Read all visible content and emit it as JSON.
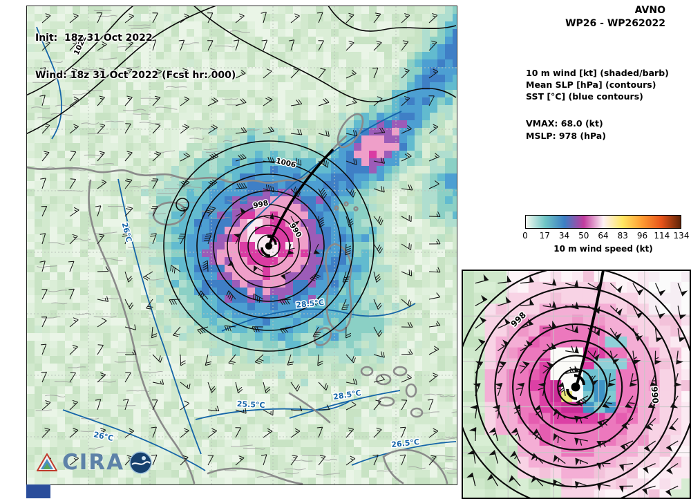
{
  "header": {
    "model": "AVNO",
    "storm": "WP26 - WP262022"
  },
  "titles": {
    "init": "Init:  18z 31 Oct 2022",
    "valid": "Wind: 18z 31 Oct 2022 (Fcst hr: 000)"
  },
  "legend": {
    "line1": "10 m wind [kt] (shaded/barb)",
    "line2": "Mean SLP [hPa] (contours)",
    "line3": "SST [°C] (blue contours)",
    "vmax": "VMAX:  68.0 (kt)",
    "mslp": "MSLP:  978 (hPa)"
  },
  "colorbar": {
    "ticks": [
      "0",
      "17",
      "34",
      "50",
      "64",
      "83",
      "96",
      "114",
      "134"
    ],
    "label": "10 m wind speed (kt)",
    "colors": [
      "#f4faf1",
      "#6fc5c5",
      "#3c7fc4",
      "#c23c9e",
      "#fdf0f5",
      "#ffe763",
      "#ff9d33",
      "#e8541a",
      "#5f2408"
    ]
  },
  "map_labels": {
    "slp_1022": "1022",
    "slp_1006": "1006",
    "slp_998": "998",
    "slp_990": "990",
    "sst_coast": "26°C",
    "sst_mid": "28.5°C",
    "sst_low": "25.5°C",
    "sst_south": "28.5°C",
    "sst_sw": "26°C",
    "sst_se": "26.5°C"
  },
  "inset_labels": {
    "slp_998": "998",
    "slp_990": "990"
  },
  "logo": {
    "text": "CIRA"
  },
  "chart_data": {
    "type": "heatmap",
    "title": "AVNO WP26 - WP262022 — 10 m wind (shaded/barb), Mean SLP (contours), SST (blue contours)",
    "init_time": "18z 31 Oct 2022",
    "valid_time": "18z 31 Oct 2022",
    "forecast_hour": 0,
    "vmax_kt": 68.0,
    "mslp_hpa": 978,
    "colorbar_label": "10 m wind speed (kt)",
    "colorbar_ticks_kt": [
      0,
      17,
      34,
      50,
      64,
      83,
      96,
      114,
      134
    ],
    "slp_contour_labels_hpa": [
      1022,
      1006,
      998,
      990
    ],
    "sst_contour_labels_c": [
      26,
      28.5,
      25.5,
      28.5,
      26,
      26.5
    ],
    "inset_slp_contour_labels_hpa": [
      998,
      990
    ],
    "legend_position": "right",
    "grid": true
  }
}
